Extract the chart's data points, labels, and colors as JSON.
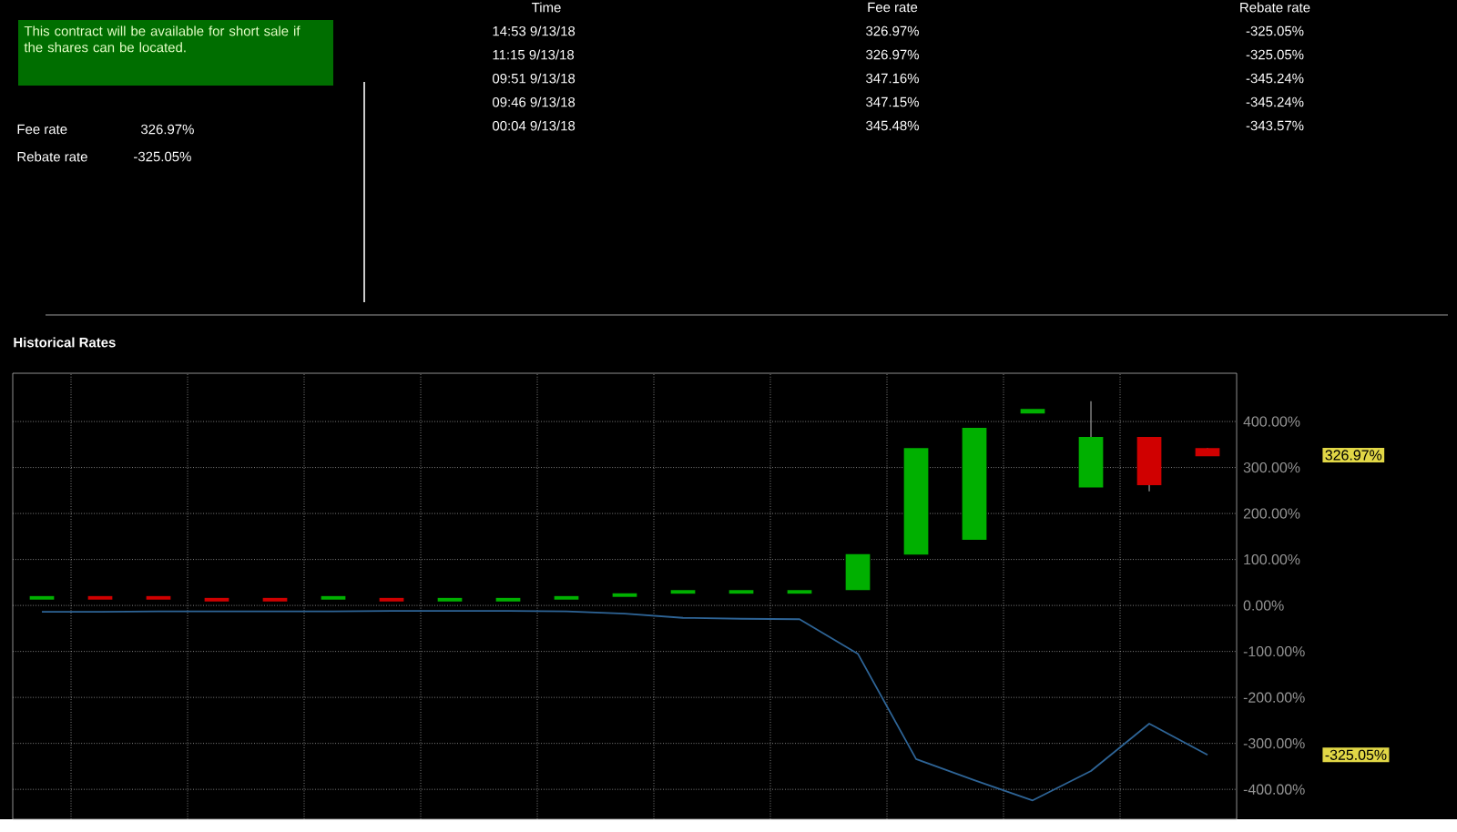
{
  "chart_data": {
    "type": "candlestick",
    "title": "Historical Rates",
    "categories": [
      null,
      null,
      null,
      null,
      null,
      null,
      null,
      null,
      null,
      null,
      null,
      null,
      null,
      null,
      null,
      null,
      null,
      null,
      null,
      null,
      null
    ],
    "ohlc": [
      [
        15,
        18,
        15,
        18
      ],
      [
        18,
        18,
        15,
        15
      ],
      [
        18,
        18,
        15,
        15
      ],
      [
        14,
        14,
        11,
        11
      ],
      [
        14,
        14,
        11,
        11
      ],
      [
        15,
        18,
        15,
        18
      ],
      [
        14,
        14,
        11,
        11
      ],
      [
        11,
        14,
        11,
        14
      ],
      [
        11,
        14,
        11,
        14
      ],
      [
        15,
        18,
        15,
        18
      ],
      [
        21,
        26,
        21,
        24
      ],
      [
        28,
        31,
        28,
        31
      ],
      [
        28,
        31,
        28,
        31
      ],
      [
        28,
        31,
        28,
        31
      ],
      [
        36,
        109,
        36,
        109
      ],
      [
        113,
        340,
        113,
        340
      ],
      [
        145,
        384,
        145,
        384
      ],
      [
        420,
        425,
        420,
        425
      ],
      [
        259,
        444,
        259,
        364
      ],
      [
        364,
        364,
        248,
        264
      ],
      [
        340,
        342,
        327,
        327
      ]
    ],
    "colors": [
      "#00b000",
      "#d00000",
      "#d00000",
      "#d00000",
      "#d00000",
      "#00b000",
      "#d00000",
      "#00b000",
      "#00b000",
      "#00b000",
      "#00b000",
      "#00b000",
      "#00b000",
      "#00b000",
      "#00b000",
      "#00b000",
      "#00b000",
      "#00b000",
      "#00b000",
      "#d00000",
      "#d00000"
    ],
    "series": [
      {
        "type": "line",
        "color": "#2e6496",
        "values": [
          -14,
          -14,
          -13,
          -13,
          -13,
          -13,
          -12,
          -12,
          -12,
          -13,
          -18,
          -27,
          -29,
          -30,
          -105,
          -334,
          -380,
          -424,
          -360,
          -257,
          -325
        ]
      }
    ],
    "ylim": [
      -465,
      505
    ],
    "yticks": [
      {
        "value": -400,
        "label": "-400.00%"
      },
      {
        "value": -300,
        "label": "-300.00%"
      },
      {
        "value": -200,
        "label": "-200.00%"
      },
      {
        "value": -100,
        "label": "-100.00%"
      },
      {
        "value": 0,
        "label": "0.00%"
      },
      {
        "value": 100,
        "label": "100.00%"
      },
      {
        "value": 200,
        "label": "200.00%"
      },
      {
        "value": 300,
        "label": "300.00%"
      },
      {
        "value": 400,
        "label": "400.00%"
      }
    ],
    "grid": true,
    "annotations": [
      "This contract will be available for short sale if the shares can be located.",
      "Fee rate",
      "326.97%",
      "Rebate rate",
      "-325.05%",
      "Time",
      "Fee rate",
      "Rebate rate",
      "14:53  9/13/18",
      "326.97%",
      "-325.05%",
      "11:15  9/13/18",
      "326.97%",
      "-325.05%",
      "09:51  9/13/18",
      "347.16%",
      "-345.24%",
      "09:46  9/13/18",
      "347.15%",
      "-345.24%",
      "00:04  9/13/18",
      "345.48%",
      "-343.57%",
      "326.97%",
      "-325.05%"
    ]
  }
}
